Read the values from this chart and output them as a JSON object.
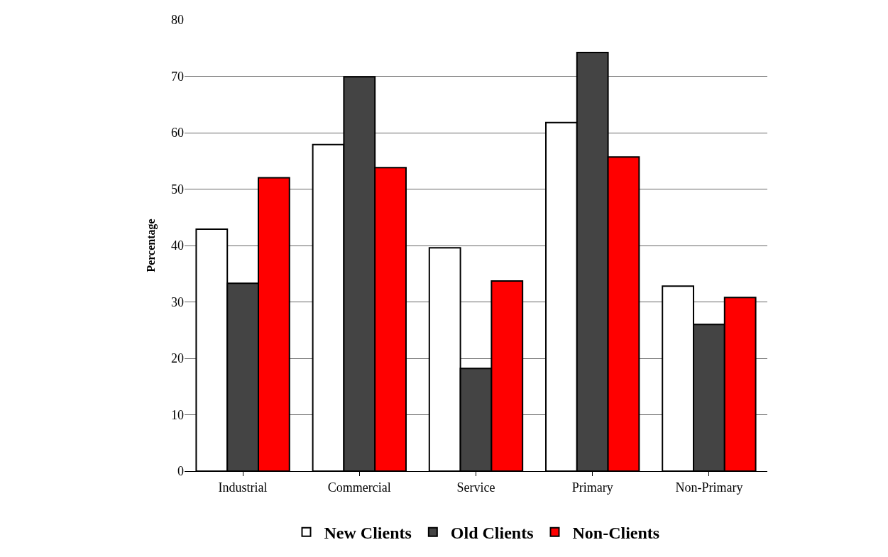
{
  "chart_data": {
    "type": "bar",
    "ylabel": "Percentage",
    "categories": [
      "Industrial",
      "Commercial",
      "Service",
      "Primary",
      "Non-Primary"
    ],
    "series": [
      {
        "name": "New Clients",
        "color": "#ffffff",
        "values": [
          42.9,
          57.9,
          39.6,
          61.8,
          32.8
        ]
      },
      {
        "name": "Old Clients",
        "color": "#444444",
        "values": [
          33.3,
          69.9,
          18.2,
          74.2,
          26
        ]
      },
      {
        "name": "Non-Clients",
        "color": "#ff0000",
        "values": [
          52,
          53.8,
          33.7,
          55.7,
          30.8
        ]
      }
    ],
    "ylim": [
      0,
      80
    ],
    "yticks": [
      0,
      10,
      20,
      30,
      40,
      50,
      60,
      70,
      80
    ],
    "grid": "y",
    "legend": "bottom"
  }
}
